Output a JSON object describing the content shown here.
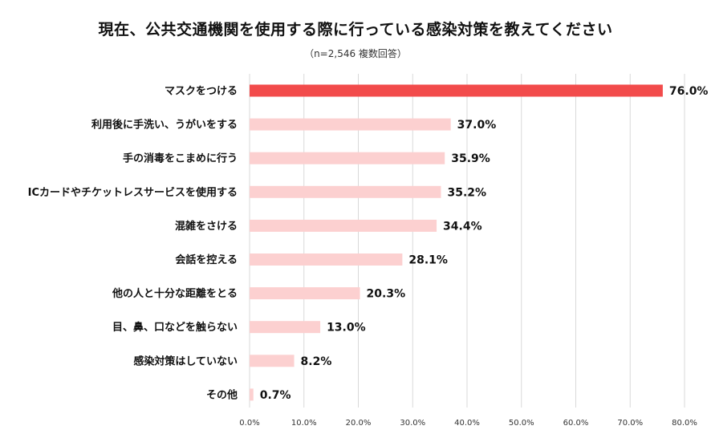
{
  "chart_data": {
    "type": "bar",
    "orientation": "horizontal",
    "title": "現在、公共交通機関を使用する際に行っている感染対策を教えてください",
    "subtitle": "（n=2,546 複数回答）",
    "categories": [
      "マスクをつける",
      "利用後に手洗い、うがいをする",
      "手の消毒をこまめに行う",
      "ICカードやチケットレスサービスを使用する",
      "混雑をさける",
      "会話を控える",
      "他の人と十分な距離をとる",
      "目、鼻、口などを触らない",
      "感染対策はしていない",
      "その他"
    ],
    "values": [
      76.0,
      37.0,
      35.9,
      35.2,
      34.4,
      28.1,
      20.3,
      13.0,
      8.2,
      0.7
    ],
    "value_labels": [
      "76.0%",
      "37.0%",
      "35.9%",
      "35.2%",
      "34.4%",
      "28.1%",
      "20.3%",
      "13.0%",
      "8.2%",
      "0.7%"
    ],
    "xlim": [
      0,
      80
    ],
    "ticks": [
      "0.0%",
      "10.0%",
      "20.0%",
      "30.0%",
      "40.0%",
      "50.0%",
      "60.0%",
      "70.0%",
      "80.0%"
    ],
    "grid": true,
    "legend": "none",
    "colors": {
      "highlight": "#f24b4b",
      "bar": "#fcd0d0",
      "grid": "#d9d9d9"
    }
  }
}
